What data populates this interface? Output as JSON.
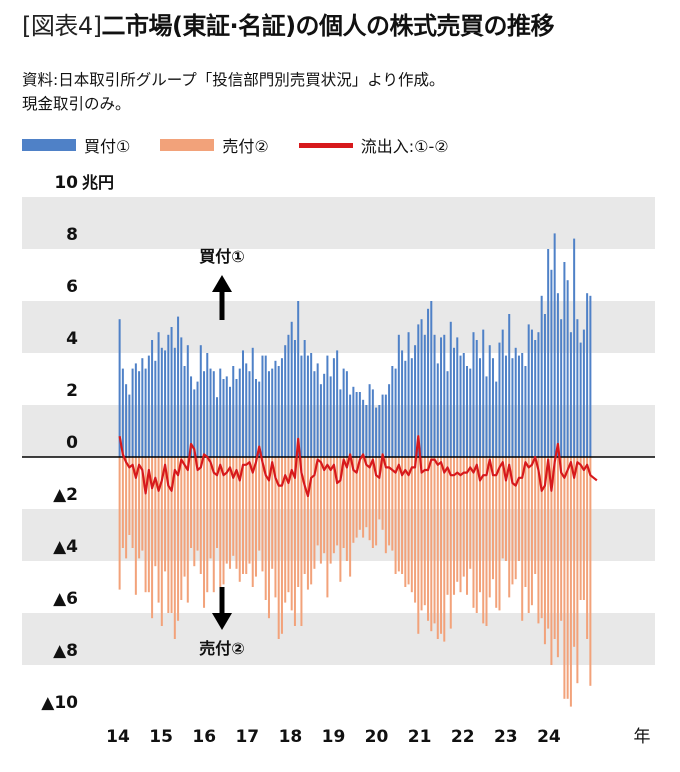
{
  "header": {
    "tag": "[図表4]",
    "title": "二市場(東証·名証)の個人の株式売買の推移"
  },
  "source": {
    "line1": "資料:日本取引所グループ「投信部門別売買状況」より作成。",
    "line2": "現金取引のみ。"
  },
  "legend": [
    {
      "name": "買付①",
      "color": "#4f81c7"
    },
    {
      "name": "売付②",
      "color": "#f2a27a"
    },
    {
      "name": "流出入:①-②",
      "color": "#d7191c"
    }
  ],
  "chart_data": {
    "type": "bar",
    "unit": "兆円",
    "x_unit": "年",
    "ylim": [
      -10,
      10
    ],
    "y_tick_values": [
      10,
      8,
      6,
      4,
      2,
      0,
      -2,
      -4,
      -6,
      -8,
      -10
    ],
    "y_tick_labels": [
      "10",
      "8",
      "6",
      "4",
      "2",
      "0",
      "▲2",
      "▲4",
      "▲6",
      "▲8",
      "▲10"
    ],
    "x_tick_labels": [
      "14",
      "15",
      "16",
      "17",
      "18",
      "19",
      "20",
      "21",
      "22",
      "23",
      "24"
    ],
    "x_range": [
      2014.0,
      2025.0
    ],
    "annotations": {
      "buy": "買付①",
      "sell": "売付②"
    },
    "colors": {
      "buy": "#4f81c7",
      "sell": "#f2a27a",
      "net": "#d7191c",
      "band": "#e8e8e8",
      "axis": "#000000"
    },
    "series": [
      {
        "name": "買付①",
        "key": "buy",
        "values": [
          5.3,
          3.4,
          2.8,
          2.4,
          3.4,
          3.6,
          3.3,
          3.8,
          3.4,
          3.9,
          4.5,
          3.7,
          4.8,
          4.2,
          4.1,
          4.7,
          5.0,
          4.2,
          5.4,
          4.6,
          3.5,
          4.3,
          3.1,
          2.6,
          2.9,
          4.3,
          3.3,
          4.0,
          3.4,
          3.3,
          2.3,
          3.4,
          3.0,
          3.1,
          2.7,
          3.5,
          3.0,
          3.4,
          4.1,
          3.6,
          3.3,
          4.2,
          3.0,
          2.9,
          3.9,
          3.9,
          3.3,
          3.4,
          3.7,
          3.5,
          3.8,
          4.3,
          4.7,
          5.2,
          4.5,
          6.0,
          3.9,
          4.5,
          3.9,
          4.0,
          3.3,
          3.6,
          2.8,
          3.2,
          3.9,
          3.1,
          3.8,
          4.1,
          2.6,
          3.4,
          3.3,
          2.4,
          2.7,
          2.5,
          2.5,
          2.2,
          2.0,
          2.8,
          2.6,
          1.9,
          2.0,
          2.4,
          2.4,
          2.8,
          3.5,
          3.4,
          4.7,
          4.1,
          3.7,
          4.8,
          3.8,
          4.3,
          5.1,
          5.3,
          4.7,
          5.7,
          6.0,
          4.7,
          3.6,
          4.6,
          4.7,
          3.3,
          5.2,
          4.2,
          4.6,
          3.9,
          4.0,
          3.5,
          3.4,
          4.8,
          4.5,
          3.8,
          4.9,
          3.1,
          4.3,
          3.8,
          2.9,
          4.4,
          4.9,
          3.9,
          5.5,
          3.8,
          4.2,
          3.9,
          4.0,
          3.5,
          5.1,
          4.9,
          4.5,
          4.8,
          6.2,
          5.5,
          8.0,
          7.2,
          8.6,
          6.3,
          5.3,
          7.5,
          6.8,
          4.8,
          8.4,
          5.3,
          4.4,
          4.9,
          6.3,
          6.2
        ]
      },
      {
        "name": "売付②",
        "key": "sell",
        "values": [
          5.1,
          3.5,
          3.9,
          3.0,
          3.5,
          5.3,
          3.9,
          3.6,
          5.2,
          5.2,
          6.2,
          4.2,
          5.6,
          6.5,
          4.4,
          6.0,
          6.0,
          7.0,
          6.3,
          5.5,
          4.6,
          5.6,
          3.5,
          4.2,
          3.6,
          4.5,
          5.8,
          5.2,
          3.9,
          5.2,
          3.5,
          5.0,
          4.9,
          4.1,
          4.3,
          3.8,
          4.3,
          4.8,
          4.5,
          4.5,
          4.1,
          5.0,
          4.6,
          3.6,
          4.4,
          5.5,
          6.2,
          4.3,
          5.4,
          7.0,
          6.8,
          5.6,
          5.2,
          5.9,
          6.5,
          5.0,
          6.5,
          4.5,
          5.1,
          4.9,
          4.3,
          3.4,
          4.1,
          3.7,
          5.4,
          4.1,
          3.7,
          3.4,
          4.8,
          3.5,
          4.0,
          4.6,
          3.3,
          3.1,
          2.8,
          3.1,
          2.7,
          3.2,
          3.5,
          3.4,
          2.4,
          2.8,
          3.7,
          3.4,
          3.6,
          4.5,
          4.4,
          4.5,
          5.0,
          4.9,
          5.2,
          5.6,
          6.8,
          5.9,
          5.7,
          6.3,
          6.7,
          6.4,
          7.0,
          6.8,
          7.1,
          5.3,
          6.6,
          5.3,
          4.8,
          5.2,
          4.6,
          5.3,
          4.3,
          5.8,
          6.0,
          5.2,
          6.4,
          6.5,
          5.4,
          4.7,
          5.8,
          5.9,
          3.9,
          4.0,
          5.4,
          4.9,
          4.7,
          4.0,
          6.3,
          5.0,
          6.0,
          5.7,
          4.5,
          6.4,
          6.2,
          7.2,
          6.6,
          8.0,
          7.0,
          7.7,
          6.3,
          9.3,
          9.3,
          9.6,
          7.3,
          8.7,
          5.5,
          5.5,
          7.0,
          8.8,
          5.1,
          6.6,
          7.1,
          6.3
        ]
      },
      {
        "name": "流出入:①-②",
        "key": "net",
        "values": [
          0.8,
          0.1,
          -0.2,
          -0.4,
          -0.3,
          -0.8,
          -0.3,
          -0.5,
          -1.4,
          -0.5,
          -1.2,
          -0.8,
          -1.3,
          -0.9,
          -0.3,
          -1.1,
          -1.3,
          -0.5,
          -0.7,
          -0.1,
          -0.3,
          -0.5,
          0.5,
          0.3,
          -0.5,
          -0.4,
          0.1,
          0.0,
          -0.2,
          -0.6,
          -0.7,
          -0.3,
          -0.7,
          -0.6,
          -0.4,
          -0.8,
          -0.5,
          -0.9,
          -0.3,
          -0.3,
          -0.2,
          -0.6,
          -0.2,
          0.4,
          -0.2,
          -0.7,
          -0.9,
          -0.2,
          -0.8,
          -1.1,
          -1.1,
          -0.7,
          -1.0,
          -0.5,
          -0.8,
          0.7,
          -0.6,
          -1.1,
          -1.5,
          -0.8,
          -0.7,
          -0.1,
          -0.2,
          -0.5,
          -0.3,
          -0.5,
          -0.3,
          -1.0,
          -0.9,
          -0.1,
          -0.4,
          0.1,
          -0.5,
          -0.6,
          -0.1,
          0.1,
          -0.3,
          -0.4,
          -0.1,
          -0.7,
          -0.8,
          0.1,
          -0.4,
          -0.4,
          -0.5,
          -0.6,
          -0.3,
          -0.7,
          -0.5,
          -0.7,
          -0.4,
          -0.4,
          0.8,
          -0.6,
          -0.5,
          -0.5,
          -0.1,
          -0.1,
          -0.3,
          -0.2,
          -0.6,
          -0.4,
          -0.7,
          -0.7,
          -0.6,
          -0.7,
          -0.6,
          -0.6,
          -0.4,
          -0.6,
          -0.3,
          -0.9,
          -0.7,
          -0.7,
          -0.1,
          -0.7,
          -0.7,
          -0.4,
          -0.2,
          -0.9,
          -0.3,
          -1.0,
          -1.1,
          -0.8,
          -0.8,
          -0.2,
          -0.4,
          -0.3,
          0.0,
          -0.5,
          -1.3,
          -1.1,
          -0.1,
          -1.3,
          -0.2,
          0.5,
          -0.6,
          -0.8,
          -0.5,
          -0.2,
          -0.8,
          -0.2,
          -0.3,
          -0.5,
          -0.3,
          -0.7,
          -0.8,
          -0.9
        ]
      }
    ]
  }
}
